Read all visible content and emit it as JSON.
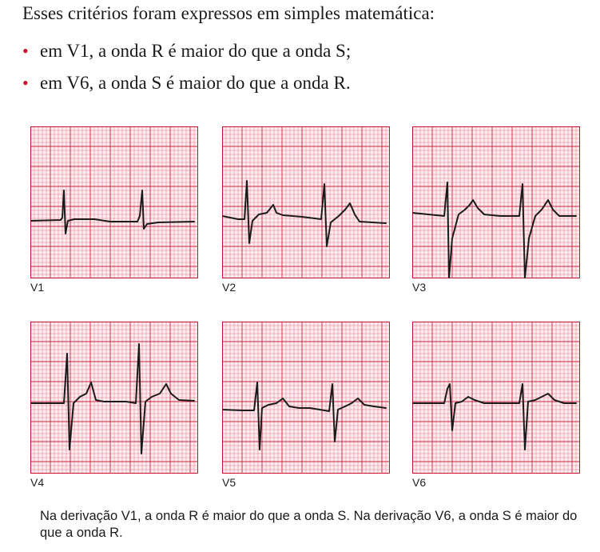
{
  "intro": "Esses critérios foram expressos em simples matemática:",
  "bullets": [
    "em V1, a onda R é maior do que a onda S;",
    "em V6, a onda S é maior do que a onda R."
  ],
  "bullet_glyph": "•",
  "panels": [
    {
      "label": "V1"
    },
    {
      "label": "V2"
    },
    {
      "label": "V3"
    },
    {
      "label": "V4"
    },
    {
      "label": "V5"
    },
    {
      "label": "V6"
    }
  ],
  "caption": "Na derivação V1, a onda R é maior do que a onda S. Na derivação V6, a onda S é maior do que a onda R.",
  "colors": {
    "grid": "#c8102e",
    "grid_background": "#fdecef",
    "trace": "#1a1a1a",
    "bullet": "#c8102e"
  }
}
